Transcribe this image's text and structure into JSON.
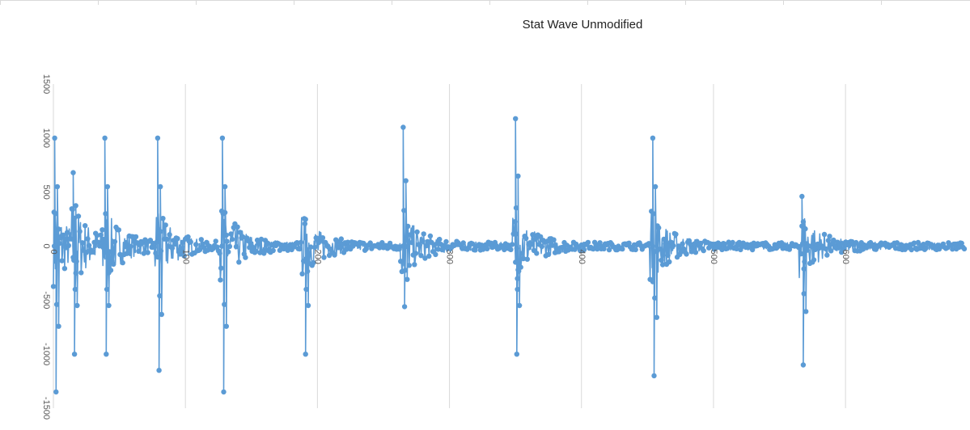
{
  "chart_data": {
    "type": "line",
    "title": "Stat Wave Unmodified",
    "xlabel": "",
    "ylabel": "",
    "xlim": [
      0,
      690
    ],
    "ylim": [
      -1500,
      1500
    ],
    "x_ticks": [
      "0",
      "100",
      "200",
      "300",
      "400",
      "500",
      "600"
    ],
    "y_ticks": [
      "1500",
      "1000",
      "500",
      "0",
      "-500",
      "-1000",
      "-1500"
    ],
    "grid": "vertical",
    "legend": "none",
    "markers": true,
    "line_color": "#5b9bd5",
    "bursts": [
      {
        "x": 1,
        "peak": 1000,
        "trough": -1350
      },
      {
        "x": 15,
        "peak": 680,
        "trough": -1000
      },
      {
        "x": 39,
        "peak": 1000,
        "trough": -1000
      },
      {
        "x": 79,
        "peak": 1000,
        "trough": -1150
      },
      {
        "x": 128,
        "peak": 1000,
        "trough": -1350
      },
      {
        "x": 190,
        "peak": 200,
        "trough": -1000
      },
      {
        "x": 265,
        "peak": 1100,
        "trough": -560
      },
      {
        "x": 350,
        "peak": 1180,
        "trough": -1000
      },
      {
        "x": 454,
        "peak": 1000,
        "trough": -1200
      },
      {
        "x": 567,
        "peak": 460,
        "trough": -1100
      }
    ]
  }
}
